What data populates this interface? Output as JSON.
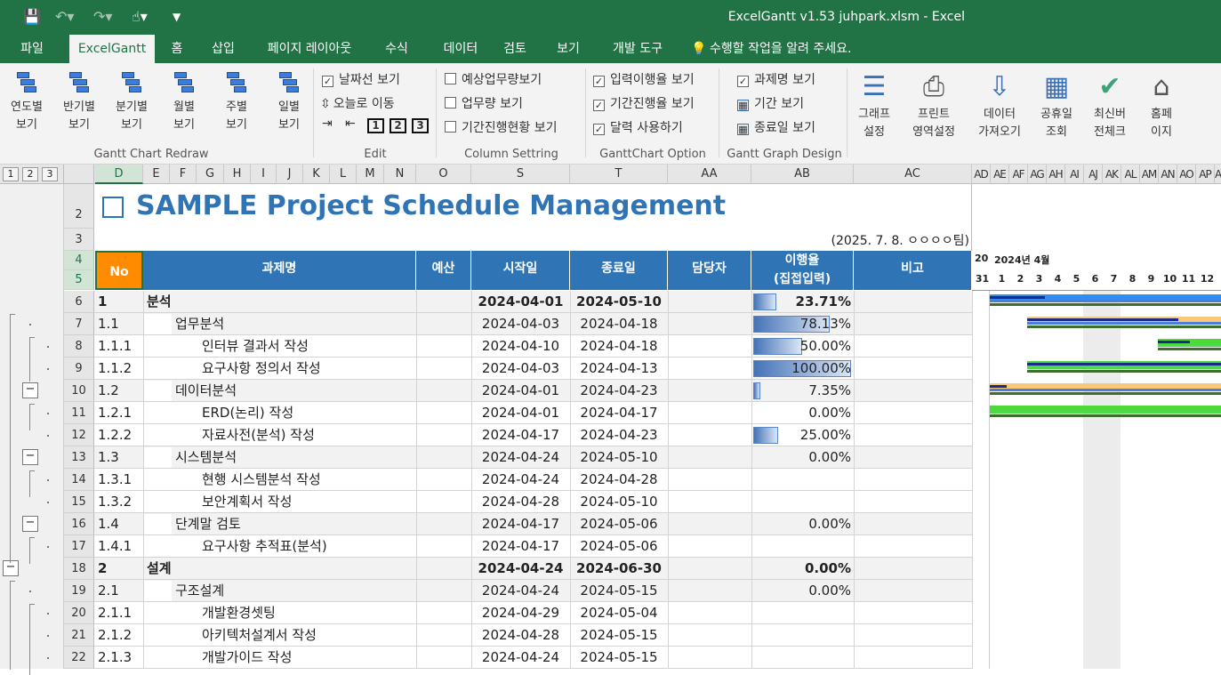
{
  "window_title": "ExcelGantt v1.53 juhpark.xlsm - Excel",
  "tabs": [
    "파일",
    "ExcelGantt",
    "홈",
    "삽입",
    "페이지 레이아웃",
    "수식",
    "데이터",
    "검토",
    "보기",
    "개발 도구"
  ],
  "tell_me": "수행할 작업을 알려 주세요.",
  "ribbon": {
    "redraw_buttons": [
      [
        "연도별",
        "보기"
      ],
      [
        "반기별",
        "보기"
      ],
      [
        "분기별",
        "보기"
      ],
      [
        "월별",
        "보기"
      ],
      [
        "주별",
        "보기"
      ],
      [
        "일별",
        "보기"
      ]
    ],
    "group_redraw": "Gantt Chart Redraw",
    "edit": {
      "show_date_line": "날짜선 보기",
      "goto_today": "오늘로 이동",
      "levels": [
        "1",
        "2",
        "3"
      ],
      "group": "Edit"
    },
    "column": {
      "items": [
        "예상업무량보기",
        "업무량 보기",
        "기간진행현황 보기"
      ],
      "group": "Column Settring"
    },
    "option": {
      "items": [
        "입력이행율 보기",
        "기간진행율 보기",
        "달력 사용하기"
      ],
      "group": "GanttChart Option"
    },
    "design": {
      "items": [
        "과제명 보기",
        "기간 보기",
        "종료일 보기"
      ],
      "group": "Gantt Graph Design"
    },
    "big_buttons": [
      [
        "그래프",
        "설정"
      ],
      [
        "프린트",
        "영역설정"
      ],
      [
        "데이터",
        "가져오기"
      ],
      [
        "공휴일",
        "조회"
      ],
      [
        "최신버",
        "전체크"
      ],
      [
        "홈페",
        "이지"
      ]
    ]
  },
  "outline_levels": [
    "1",
    "2",
    "3"
  ],
  "columns": [
    "D",
    "E",
    "F",
    "G",
    "H",
    "I",
    "J",
    "K",
    "L",
    "M",
    "N",
    "O",
    "S",
    "T",
    "AA",
    "AB",
    "AC"
  ],
  "gantt_columns": [
    "AD",
    "AE",
    "AF",
    "AG",
    "AH",
    "AI",
    "AJ",
    "AK",
    "AL",
    "AM",
    "AN",
    "AO",
    "AP",
    "AQ"
  ],
  "sheet_title": "SAMPLE Project Schedule Management",
  "date_team": "(2025. 7. 8. ㅇㅇㅇㅇ팀)",
  "headers": {
    "no": "No",
    "task": "과제명",
    "budget": "예산",
    "start": "시작일",
    "end": "종료일",
    "owner": "담당자",
    "rate1": "이행율",
    "rate2": "(집접입력)",
    "note": "비고"
  },
  "gantt_header": {
    "year_prefix": "20",
    "month": "2024년 4월",
    "days": [
      "31",
      "1",
      "2",
      "3",
      "4",
      "5",
      "6",
      "7",
      "8",
      "9",
      "10",
      "11",
      "12"
    ]
  },
  "row_numbers": [
    "2",
    "3",
    "4",
    "5",
    "6",
    "7",
    "8",
    "9",
    "10",
    "11",
    "12",
    "13",
    "14",
    "15",
    "16",
    "17",
    "18",
    "19",
    "20",
    "21",
    "22"
  ],
  "rows": [
    {
      "no": "1",
      "task": "분석",
      "start": "2024-04-01",
      "end": "2024-05-10",
      "rate": "23.71%",
      "level": 1,
      "pct": 0.2371
    },
    {
      "no": "1.1",
      "task": "업무분석",
      "start": "2024-04-03",
      "end": "2024-04-18",
      "rate": "78.13%",
      "level": 2,
      "pct": 0.7813
    },
    {
      "no": "1.1.1",
      "task": "인터뷰 결과서 작성",
      "start": "2024-04-10",
      "end": "2024-04-18",
      "rate": "50.00%",
      "level": 3,
      "pct": 0.5
    },
    {
      "no": "1.1.2",
      "task": "요구사항 정의서 작성",
      "start": "2024-04-03",
      "end": "2024-04-13",
      "rate": "100.00%",
      "level": 3,
      "pct": 1.0
    },
    {
      "no": "1.2",
      "task": "데이터분석",
      "start": "2024-04-01",
      "end": "2024-04-23",
      "rate": "7.35%",
      "level": 2,
      "pct": 0.0735
    },
    {
      "no": "1.2.1",
      "task": "ERD(논리) 작성",
      "start": "2024-04-01",
      "end": "2024-04-17",
      "rate": "0.00%",
      "level": 3,
      "pct": 0
    },
    {
      "no": "1.2.2",
      "task": "자료사전(분석) 작성",
      "start": "2024-04-17",
      "end": "2024-04-23",
      "rate": "25.00%",
      "level": 3,
      "pct": 0.25
    },
    {
      "no": "1.3",
      "task": "시스템분석",
      "start": "2024-04-24",
      "end": "2024-05-10",
      "rate": "0.00%",
      "level": 2,
      "pct": 0
    },
    {
      "no": "1.3.1",
      "task": "현행 시스템분석 작성",
      "start": "2024-04-24",
      "end": "2024-04-28",
      "rate": "",
      "level": 3,
      "pct": 0
    },
    {
      "no": "1.3.2",
      "task": "보안계획서 작성",
      "start": "2024-04-28",
      "end": "2024-05-10",
      "rate": "",
      "level": 3,
      "pct": 0
    },
    {
      "no": "1.4",
      "task": "단계말 검토",
      "start": "2024-04-17",
      "end": "2024-05-06",
      "rate": "0.00%",
      "level": 2,
      "pct": 0
    },
    {
      "no": "1.4.1",
      "task": "요구사항 추적표(분석)",
      "start": "2024-04-17",
      "end": "2024-05-06",
      "rate": "",
      "level": 3,
      "pct": 0
    },
    {
      "no": "2",
      "task": "설계",
      "start": "2024-04-24",
      "end": "2024-06-30",
      "rate": "0.00%",
      "level": 1,
      "pct": 0
    },
    {
      "no": "2.1",
      "task": "구조설계",
      "start": "2024-04-24",
      "end": "2024-05-15",
      "rate": "0.00%",
      "level": 2,
      "pct": 0
    },
    {
      "no": "2.1.1",
      "task": "개발환경셋팅",
      "start": "2024-04-29",
      "end": "2024-05-04",
      "rate": "",
      "level": 3,
      "pct": 0
    },
    {
      "no": "2.1.2",
      "task": "아키텍처설계서 작성",
      "start": "2024-04-28",
      "end": "2024-05-15",
      "rate": "",
      "level": 3,
      "pct": 0
    },
    {
      "no": "2.1.3",
      "task": "개발가이드 작성",
      "start": "2024-04-24",
      "end": "2024-05-15",
      "rate": "",
      "level": 3,
      "pct": 0
    }
  ]
}
